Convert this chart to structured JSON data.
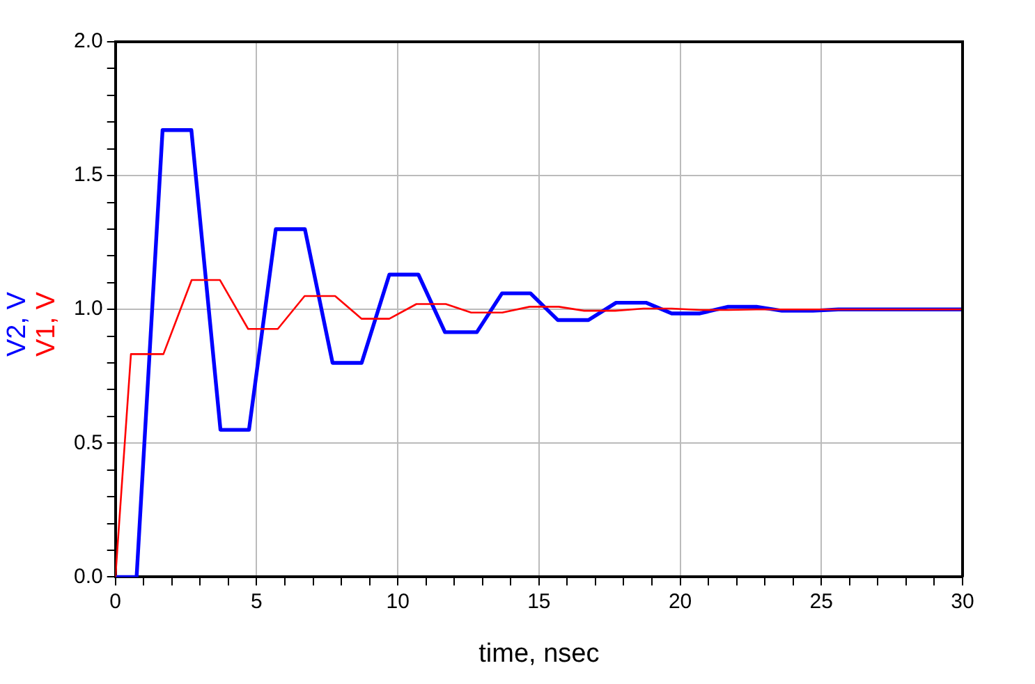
{
  "chart_data": {
    "type": "line",
    "xlabel": "time, nsec",
    "legend": "left",
    "grid": true,
    "marker": "none",
    "line_style": "solid",
    "xlim": [
      0,
      30
    ],
    "xticks": [
      0,
      {
        "value": 1,
        "label": null
      },
      {
        "value": 2,
        "label": null
      },
      {
        "value": 3,
        "label": null
      },
      {
        "value": 4,
        "label": null
      },
      5,
      {
        "value": 6,
        "label": null
      },
      {
        "value": 7,
        "label": null
      },
      {
        "value": 8,
        "label": null
      },
      {
        "value": 9,
        "label": null
      },
      10,
      {
        "value": 11,
        "label": null
      },
      {
        "value": 12,
        "label": null
      },
      {
        "value": 13,
        "label": null
      },
      {
        "value": 14,
        "label": null
      },
      15,
      {
        "value": 16,
        "label": null
      },
      {
        "value": 17,
        "label": null
      },
      {
        "value": 18,
        "label": null
      },
      {
        "value": 19,
        "label": null
      },
      20,
      {
        "value": 21,
        "label": null
      },
      {
        "value": 22,
        "label": null
      },
      {
        "value": 23,
        "label": null
      },
      {
        "value": 24,
        "label": null
      },
      25,
      {
        "value": 26,
        "label": null
      },
      {
        "value": 27,
        "label": null
      },
      {
        "value": 28,
        "label": null
      },
      {
        "value": 29,
        "label": null
      },
      30
    ],
    "ylim": [
      0,
      2
    ],
    "yticks": [
      {
        "value": 0,
        "label": "0.0"
      },
      {
        "value": 0.1,
        "label": null
      },
      {
        "value": 0.2,
        "label": null
      },
      {
        "value": 0.3,
        "label": null
      },
      {
        "value": 0.4,
        "label": null
      },
      {
        "value": 0.5,
        "label": "0.5"
      },
      {
        "value": 0.6,
        "label": null
      },
      {
        "value": 0.7,
        "label": null
      },
      {
        "value": 0.8,
        "label": null
      },
      {
        "value": 0.9,
        "label": null
      },
      {
        "value": 1,
        "label": "1.0"
      },
      {
        "value": 1.1,
        "label": null
      },
      {
        "value": 1.2,
        "label": null
      },
      {
        "value": 1.3,
        "label": null
      },
      {
        "value": 1.4,
        "label": null
      },
      {
        "value": 1.5,
        "label": "1.5"
      },
      {
        "value": 1.6,
        "label": null
      },
      {
        "value": 1.7,
        "label": null
      },
      {
        "value": 1.8,
        "label": null
      },
      {
        "value": 1.9,
        "label": null
      },
      {
        "value": 2,
        "label": "2.0"
      }
    ],
    "series": [
      {
        "name": "V2, V",
        "color": "#0000ff",
        "x": [
          0,
          0.75,
          1.67,
          2.69,
          3.72,
          4.73,
          5.68,
          6.71,
          7.69,
          8.72,
          9.7,
          10.73,
          11.67,
          12.8,
          13.69,
          14.7,
          15.67,
          16.75,
          17.73,
          18.79,
          19.7,
          20.7,
          21.7,
          22.7,
          23.6,
          24.7,
          25.6,
          26.6,
          27.6,
          28.6,
          30
        ],
        "values": [
          0,
          0,
          1.67,
          1.67,
          0.55,
          0.55,
          1.3,
          1.3,
          0.8,
          0.8,
          1.13,
          1.13,
          0.915,
          0.915,
          1.06,
          1.06,
          0.96,
          0.96,
          1.025,
          1.025,
          0.985,
          0.985,
          1.01,
          1.01,
          0.995,
          0.995,
          1,
          1,
          1,
          1,
          1
        ]
      },
      {
        "name": "V1, V",
        "color": "#ff0000",
        "x": [
          0,
          0.55,
          1.7,
          2.7,
          3.7,
          4.7,
          5.75,
          6.7,
          7.78,
          8.72,
          9.7,
          10.66,
          11.7,
          12.6,
          13.7,
          14.67,
          15.7,
          16.6,
          17.7,
          18.7,
          19.7,
          20.7,
          21.7,
          22.7,
          30
        ],
        "values": [
          0,
          0.833,
          0.833,
          1.11,
          1.11,
          0.927,
          0.927,
          1.05,
          1.05,
          0.965,
          0.965,
          1.02,
          1.02,
          0.988,
          0.988,
          1.01,
          1.01,
          0.995,
          0.995,
          1.003,
          1.003,
          0.998,
          0.998,
          1,
          1
        ]
      }
    ]
  }
}
